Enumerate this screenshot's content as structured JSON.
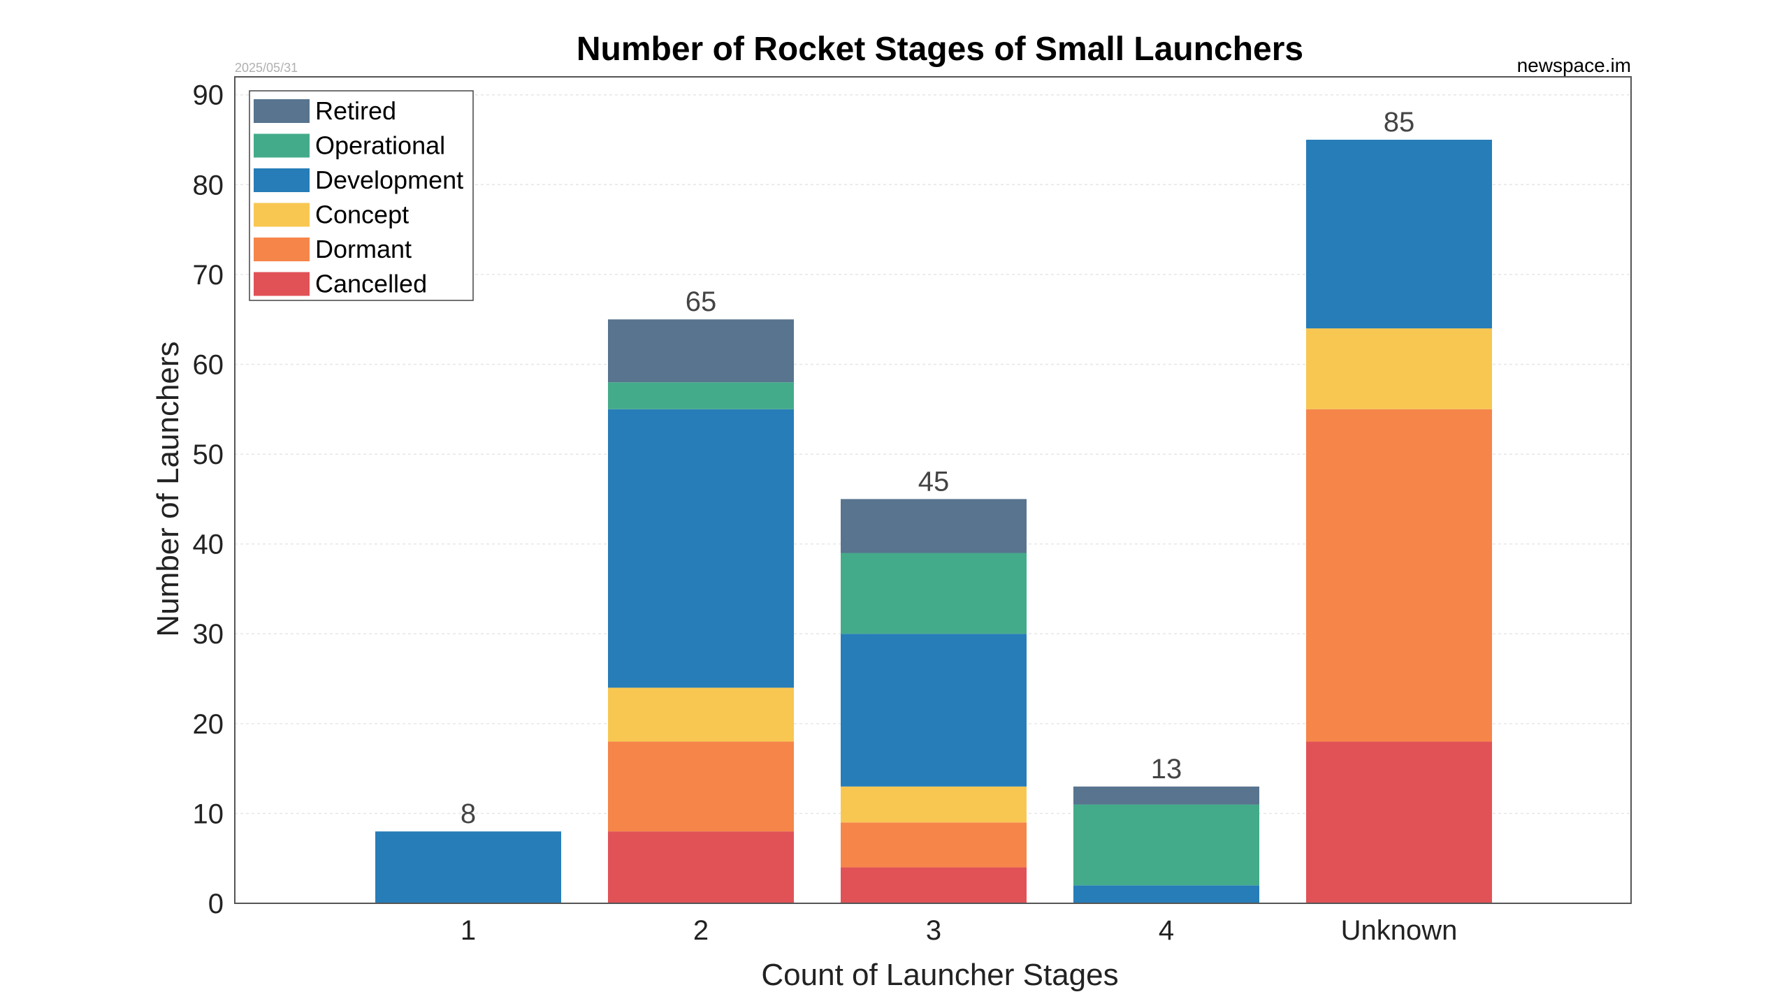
{
  "chart_data": {
    "type": "bar",
    "stacked": true,
    "title": "Number of Rocket Stages of Small Launchers",
    "date_label": "2025/05/31",
    "source_label": "newspace.im",
    "xlabel": "Count of Launcher Stages",
    "ylabel": "Number of Launchers",
    "categories": [
      "1",
      "2",
      "3",
      "4",
      "Unknown"
    ],
    "ylim": [
      0,
      92
    ],
    "yticks": [
      0,
      10,
      20,
      30,
      40,
      50,
      60,
      70,
      80,
      90
    ],
    "grid": true,
    "legend_position": "top-left",
    "series": [
      {
        "name": "Cancelled",
        "color": "#e15257",
        "values": [
          0,
          8,
          4,
          0,
          18
        ]
      },
      {
        "name": "Dormant",
        "color": "#f6854a",
        "values": [
          0,
          10,
          5,
          0,
          37
        ]
      },
      {
        "name": "Concept",
        "color": "#f8c752",
        "values": [
          0,
          6,
          4,
          0,
          9
        ]
      },
      {
        "name": "Development",
        "color": "#277db8",
        "values": [
          8,
          31,
          17,
          2,
          21
        ]
      },
      {
        "name": "Operational",
        "color": "#44ab8a",
        "values": [
          0,
          3,
          9,
          9,
          0
        ]
      },
      {
        "name": "Retired",
        "color": "#58748f",
        "values": [
          0,
          7,
          6,
          2,
          0
        ]
      }
    ],
    "legend_order": [
      "Retired",
      "Operational",
      "Development",
      "Concept",
      "Dormant",
      "Cancelled"
    ],
    "totals": [
      "8",
      "65",
      "45",
      "13",
      "85"
    ]
  }
}
